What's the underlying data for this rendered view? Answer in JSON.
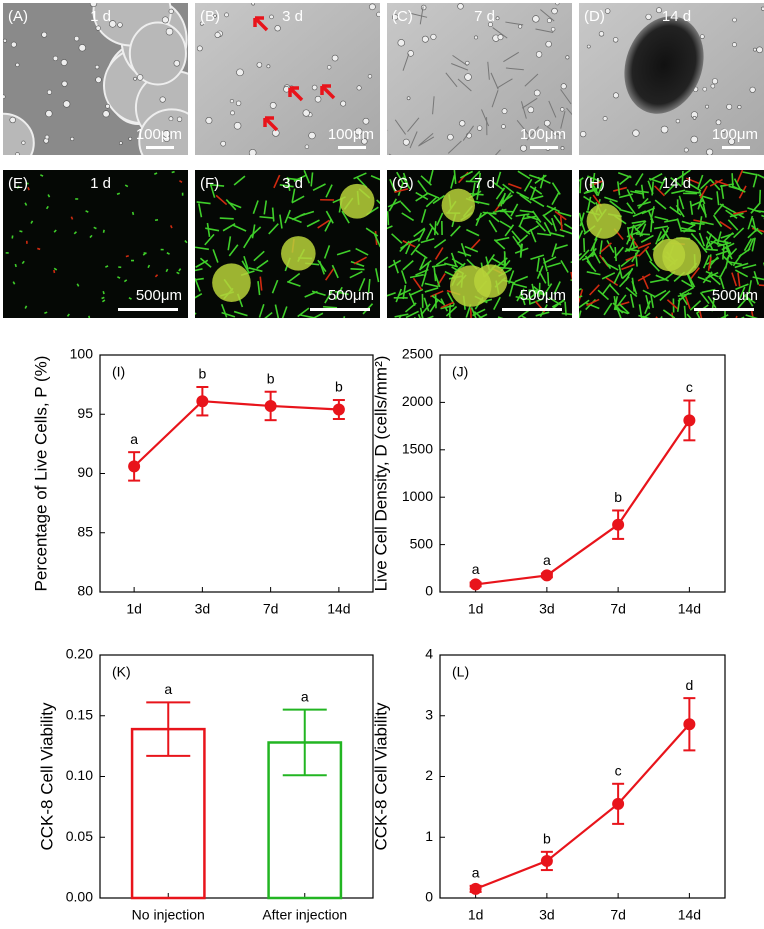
{
  "image_panels": [
    {
      "label": "(A)",
      "time": "1 d",
      "scale": "100μm"
    },
    {
      "label": "(B)",
      "time": "3 d",
      "scale": "100μm"
    },
    {
      "label": "(C)",
      "time": "7 d",
      "scale": "100μm"
    },
    {
      "label": "(D)",
      "time": "14  d",
      "scale": "100μm"
    },
    {
      "label": "(E)",
      "time": "1 d",
      "scale": "500μm"
    },
    {
      "label": "(F)",
      "time": "3 d",
      "scale": "500μm"
    },
    {
      "label": "(G)",
      "time": "7 d",
      "scale": "500μm"
    },
    {
      "label": "(H)",
      "time": "14 d",
      "scale": "500μm"
    }
  ],
  "chart_data": [
    {
      "type": "line",
      "panel": "(I)",
      "y_label": "Percentage of Live Cells, P (%)",
      "categories": [
        "1d",
        "3d",
        "7d",
        "14d"
      ],
      "values": [
        90.6,
        96.1,
        95.7,
        95.4
      ],
      "errors": [
        1.2,
        1.2,
        1.2,
        0.8
      ],
      "point_labels": [
        "a",
        "b",
        "b",
        "b"
      ],
      "color": "#e8141b",
      "ylim": [
        80,
        100
      ],
      "yticks": [
        80,
        85,
        90,
        95,
        100
      ]
    },
    {
      "type": "line",
      "panel": "(J)",
      "y_label": "Live Cell Density, D (cells/mm²)",
      "categories": [
        "1d",
        "3d",
        "7d",
        "14d"
      ],
      "values": [
        80,
        175,
        710,
        1810
      ],
      "errors": [
        20,
        20,
        150,
        210
      ],
      "point_labels": [
        "a",
        "a",
        "b",
        "c"
      ],
      "color": "#e8141b",
      "ylim": [
        0,
        2500
      ],
      "yticks": [
        0,
        500,
        1000,
        1500,
        2000,
        2500
      ]
    },
    {
      "type": "bar",
      "panel": "(K)",
      "y_label": "CCK-8 Cell Viability",
      "categories": [
        "No injection",
        "After injection"
      ],
      "values": [
        0.139,
        0.128
      ],
      "errors": [
        0.022,
        0.027
      ],
      "point_labels": [
        "a",
        "a"
      ],
      "colors": [
        "#e8141b",
        "#22b522"
      ],
      "ylim": [
        0,
        0.2
      ],
      "yticks": [
        {
          "value": 0,
          "label": "0.00"
        },
        {
          "value": 0.05,
          "label": "0.05"
        },
        {
          "value": 0.1,
          "label": "0.10"
        },
        {
          "value": 0.15,
          "label": "0.15"
        },
        {
          "value": 0.2,
          "label": "0.20"
        }
      ]
    },
    {
      "type": "line",
      "panel": "(L)",
      "y_label": "CCK-8 Cell Viability",
      "categories": [
        "1d",
        "3d",
        "7d",
        "14d"
      ],
      "values": [
        0.15,
        0.61,
        1.55,
        2.86
      ],
      "errors": [
        0.05,
        0.15,
        0.33,
        0.43
      ],
      "point_labels": [
        "a",
        "b",
        "c",
        "d"
      ],
      "color": "#e8141b",
      "ylim": [
        0,
        4
      ],
      "yticks": [
        0,
        1,
        2,
        3,
        4
      ]
    }
  ]
}
